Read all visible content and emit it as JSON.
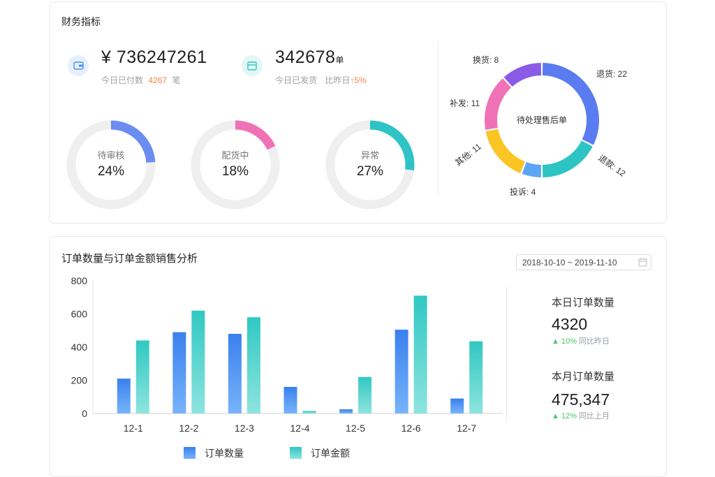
{
  "finance": {
    "title": "财务指标",
    "paid": {
      "value": "¥ 736247261",
      "sub_label": "今日已付数",
      "count": "4267",
      "unit": "笔",
      "icon": "wallet-icon"
    },
    "shipped": {
      "value": "342678",
      "value_unit": "单",
      "sub_label": "今日已发货",
      "compare_label": "比昨日",
      "change": "↑5%",
      "icon": "box-icon"
    },
    "rings": [
      {
        "label": "待审核",
        "percent_text": "24%",
        "percent": 24,
        "color": "#6b8df0"
      },
      {
        "label": "配货中",
        "percent_text": "18%",
        "percent": 18,
        "color": "#ef72b6"
      },
      {
        "label": "异常",
        "percent_text": "27%",
        "percent": 27,
        "color": "#2fc3c6"
      }
    ],
    "after_sales": {
      "center_label": "待处理售后单",
      "segments": [
        {
          "name": "退货",
          "value": 22,
          "label": "退货: 22",
          "color": "#5b7cf0"
        },
        {
          "name": "退款",
          "value": 12,
          "label": "退款: 12",
          "color": "#2ec4c4"
        },
        {
          "name": "投诉",
          "value": 4,
          "label": "投诉: 4",
          "color": "#5aa6f4"
        },
        {
          "name": "其他",
          "value": 11,
          "label": "其他: 11",
          "color": "#fbc524"
        },
        {
          "name": "补发",
          "value": 11,
          "label": "补发: 11",
          "color": "#ef72b6"
        },
        {
          "name": "换货",
          "value": 8,
          "label": "换货: 8",
          "color": "#8a5be6"
        }
      ]
    }
  },
  "sales": {
    "title": "订单数量与订单金额销售分析",
    "date_range": "2018-10-10 ~ 2019-11-10",
    "today": {
      "title": "本日订单数量",
      "value": "4320",
      "change": "10%",
      "compare": "同比昨日"
    },
    "month": {
      "title": "本月订单数量",
      "value": "475,347",
      "change": "12%",
      "compare": "同比上月"
    }
  },
  "chart_data": {
    "type": "bar",
    "categories": [
      "12-1",
      "12-2",
      "12-3",
      "12-4",
      "12-5",
      "12-6",
      "12-7"
    ],
    "series": [
      {
        "name": "订单数量",
        "values": [
          210,
          490,
          480,
          160,
          25,
          505,
          90
        ],
        "color": "#4a90f0"
      },
      {
        "name": "订单金额",
        "values": [
          440,
          620,
          580,
          15,
          220,
          710,
          435
        ],
        "color": "#3fcfc9"
      }
    ],
    "yticks": [
      0,
      200,
      400,
      600,
      800
    ],
    "ylim": [
      0,
      800
    ],
    "legend": "bottom"
  }
}
